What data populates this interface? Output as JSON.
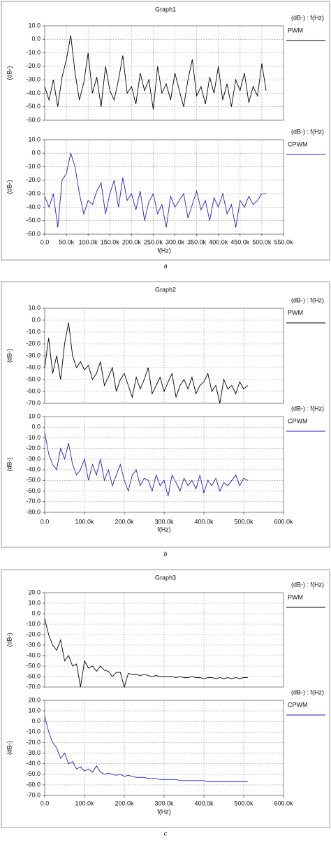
{
  "chart_data": [
    {
      "type": "line",
      "title": "Graph1",
      "ylabel": "(dB-)",
      "legend_title": "(dB-) : f(Hz)",
      "grid": true,
      "xlim": [
        0,
        550000
      ],
      "xticks": [
        0,
        50000,
        100000,
        150000,
        200000,
        250000,
        300000,
        350000,
        400000,
        450000,
        500000,
        550000
      ],
      "ylim": [
        -60,
        10
      ],
      "yticks": [
        {
          "value": 10,
          "label": "10.0"
        },
        {
          "value": 0,
          "label": "0.0"
        },
        {
          "value": -10,
          "label": "-10.0"
        },
        {
          "value": -20,
          "label": "-20.0"
        },
        {
          "value": -30,
          "label": "-30.0"
        },
        {
          "value": -40,
          "label": "-40.0"
        },
        {
          "value": -50,
          "label": "-50.0"
        },
        {
          "value": -60,
          "label": "-60.0"
        }
      ],
      "x": [
        0,
        10000,
        20000,
        30000,
        40000,
        50000,
        60000,
        70000,
        80000,
        90000,
        100000,
        110000,
        120000,
        130000,
        140000,
        150000,
        160000,
        170000,
        180000,
        190000,
        200000,
        210000,
        220000,
        230000,
        240000,
        250000,
        260000,
        270000,
        280000,
        290000,
        300000,
        310000,
        320000,
        330000,
        340000,
        350000,
        360000,
        370000,
        380000,
        390000,
        400000,
        410000,
        420000,
        430000,
        440000,
        450000,
        460000,
        470000,
        480000,
        490000,
        500000,
        510000
      ],
      "series": [
        {
          "name": "PWM",
          "color": "#000000",
          "values": [
            -35,
            -45,
            -30,
            -50,
            -28,
            -15,
            3,
            -25,
            -45,
            -32,
            -10,
            -40,
            -28,
            -50,
            -20,
            -38,
            -45,
            -30,
            -12,
            -40,
            -35,
            -48,
            -25,
            -38,
            -30,
            -52,
            -20,
            -40,
            -33,
            -45,
            -25,
            -38,
            -50,
            -30,
            -15,
            -42,
            -35,
            -48,
            -28,
            -40,
            -20,
            -45,
            -33,
            -50,
            -30,
            -38,
            -25,
            -47,
            -35,
            -42,
            -18,
            -38
          ]
        }
      ]
    },
    {
      "type": "line",
      "caption": "a",
      "xlabel": "f(Hz)",
      "ylabel": "(dB-)",
      "legend_title": "(dB-) : f(Hz)",
      "grid": true,
      "xlim": [
        0,
        550000
      ],
      "xticks": [
        {
          "value": 0,
          "label": "0.0"
        },
        {
          "value": 50000,
          "label": "50.0k"
        },
        {
          "value": 100000,
          "label": "100.0k"
        },
        {
          "value": 150000,
          "label": "150.0k"
        },
        {
          "value": 200000,
          "label": "200.0k"
        },
        {
          "value": 250000,
          "label": "250.0k"
        },
        {
          "value": 300000,
          "label": "300.0k"
        },
        {
          "value": 350000,
          "label": "350.0k"
        },
        {
          "value": 400000,
          "label": "400.0k"
        },
        {
          "value": 450000,
          "label": "450.0k"
        },
        {
          "value": 500000,
          "label": "500.0k"
        },
        {
          "value": 550000,
          "label": "550.0k"
        }
      ],
      "ylim": [
        -60,
        10
      ],
      "yticks": [
        {
          "value": 10,
          "label": "10.0"
        },
        {
          "value": 0,
          "label": "0.0"
        },
        {
          "value": -10,
          "label": "-10.0"
        },
        {
          "value": -20,
          "label": "-20.0"
        },
        {
          "value": -30,
          "label": "-30.0"
        },
        {
          "value": -40,
          "label": "-40.0"
        },
        {
          "value": -50,
          "label": "-50.0"
        },
        {
          "value": -60,
          "label": "-60.0"
        }
      ],
      "x": [
        0,
        10000,
        20000,
        30000,
        40000,
        50000,
        60000,
        70000,
        80000,
        90000,
        100000,
        110000,
        120000,
        130000,
        140000,
        150000,
        160000,
        170000,
        180000,
        190000,
        200000,
        210000,
        220000,
        230000,
        240000,
        250000,
        260000,
        270000,
        280000,
        290000,
        300000,
        310000,
        320000,
        330000,
        340000,
        350000,
        360000,
        370000,
        380000,
        390000,
        400000,
        410000,
        420000,
        430000,
        440000,
        450000,
        460000,
        470000,
        480000,
        490000,
        500000,
        510000
      ],
      "series": [
        {
          "name": "CPWM",
          "color": "#1f1fd0",
          "values": [
            -32,
            -40,
            -30,
            -55,
            -20,
            -15,
            0,
            -10,
            -30,
            -45,
            -35,
            -38,
            -28,
            -22,
            -45,
            -30,
            -20,
            -40,
            -18,
            -35,
            -30,
            -42,
            -28,
            -50,
            -36,
            -30,
            -45,
            -38,
            -55,
            -32,
            -40,
            -35,
            -30,
            -48,
            -38,
            -28,
            -42,
            -35,
            -50,
            -33,
            -40,
            -30,
            -45,
            -38,
            -55,
            -35,
            -40,
            -32,
            -38,
            -35,
            -30,
            -30
          ]
        }
      ]
    },
    {
      "type": "line",
      "title": "Graph2",
      "ylabel": "(dB-)",
      "legend_title": "(dB-) : f(Hz)",
      "grid": true,
      "xlim": [
        0,
        600000
      ],
      "xticks": [
        0,
        100000,
        200000,
        300000,
        400000,
        500000,
        600000
      ],
      "ylim": [
        -70,
        10
      ],
      "yticks": [
        {
          "value": 10,
          "label": "10.0"
        },
        {
          "value": 0,
          "label": "0.0"
        },
        {
          "value": -10,
          "label": "-10.0"
        },
        {
          "value": -20,
          "label": "-20.0"
        },
        {
          "value": -30,
          "label": "-30.0"
        },
        {
          "value": -40,
          "label": "-40.0"
        },
        {
          "value": -50,
          "label": "-50.0"
        },
        {
          "value": -60,
          "label": "-60.0"
        },
        {
          "value": -70,
          "label": "-70.0"
        }
      ],
      "x": [
        0,
        10000,
        20000,
        30000,
        40000,
        50000,
        60000,
        70000,
        80000,
        90000,
        100000,
        110000,
        120000,
        130000,
        140000,
        150000,
        160000,
        170000,
        180000,
        190000,
        200000,
        210000,
        220000,
        230000,
        240000,
        250000,
        260000,
        270000,
        280000,
        290000,
        300000,
        310000,
        320000,
        330000,
        340000,
        350000,
        360000,
        370000,
        380000,
        390000,
        400000,
        410000,
        420000,
        430000,
        440000,
        450000,
        460000,
        470000,
        480000,
        490000,
        500000,
        510000
      ],
      "series": [
        {
          "name": "PWM",
          "color": "#000000",
          "values": [
            -40,
            -15,
            -45,
            -30,
            -50,
            -20,
            -2,
            -30,
            -40,
            -35,
            -42,
            -38,
            -50,
            -45,
            -35,
            -55,
            -48,
            -40,
            -60,
            -50,
            -45,
            -55,
            -65,
            -48,
            -58,
            -50,
            -40,
            -62,
            -55,
            -48,
            -60,
            -52,
            -45,
            -65,
            -55,
            -50,
            -58,
            -48,
            -62,
            -55,
            -52,
            -45,
            -60,
            -55,
            -70,
            -50,
            -58,
            -55,
            -62,
            -52,
            -58,
            -55
          ]
        }
      ]
    },
    {
      "type": "line",
      "caption": "b",
      "xlabel": "f(Hz)",
      "ylabel": "(dB-)",
      "legend_title": "(dB-) : f(Hz)",
      "grid": true,
      "xlim": [
        0,
        600000
      ],
      "xticks": [
        {
          "value": 0,
          "label": "0.0"
        },
        {
          "value": 100000,
          "label": "100.0k"
        },
        {
          "value": 200000,
          "label": "200.0k"
        },
        {
          "value": 300000,
          "label": "300.0k"
        },
        {
          "value": 400000,
          "label": "400.0k"
        },
        {
          "value": 500000,
          "label": "500.0k"
        },
        {
          "value": 600000,
          "label": "600.0k"
        }
      ],
      "ylim": [
        -80,
        10
      ],
      "yticks": [
        {
          "value": 10,
          "label": "10.0"
        },
        {
          "value": 0,
          "label": "0.0"
        },
        {
          "value": -10,
          "label": "-10.0"
        },
        {
          "value": -20,
          "label": "-20.0"
        },
        {
          "value": -30,
          "label": "-30.0"
        },
        {
          "value": -40,
          "label": "-40.0"
        },
        {
          "value": -50,
          "label": "-50.0"
        },
        {
          "value": -60,
          "label": "-60.0"
        },
        {
          "value": -70,
          "label": "-70.0"
        },
        {
          "value": -80,
          "label": "-80.0"
        }
      ],
      "x": [
        0,
        10000,
        20000,
        30000,
        40000,
        50000,
        60000,
        70000,
        80000,
        90000,
        100000,
        110000,
        120000,
        130000,
        140000,
        150000,
        160000,
        170000,
        180000,
        190000,
        200000,
        210000,
        220000,
        230000,
        240000,
        250000,
        260000,
        270000,
        280000,
        290000,
        300000,
        310000,
        320000,
        330000,
        340000,
        350000,
        360000,
        370000,
        380000,
        390000,
        400000,
        410000,
        420000,
        430000,
        440000,
        450000,
        460000,
        470000,
        480000,
        490000,
        500000,
        510000
      ],
      "series": [
        {
          "name": "CPWM",
          "color": "#1f1fd0",
          "values": [
            -5,
            -25,
            -35,
            -40,
            -20,
            -30,
            -15,
            -35,
            -45,
            -40,
            -30,
            -50,
            -35,
            -45,
            -30,
            -50,
            -40,
            -55,
            -45,
            -35,
            -50,
            -60,
            -45,
            -40,
            -55,
            -48,
            -50,
            -60,
            -45,
            -55,
            -50,
            -65,
            -45,
            -52,
            -60,
            -48,
            -55,
            -50,
            -58,
            -45,
            -62,
            -50,
            -55,
            -48,
            -60,
            -52,
            -55,
            -50,
            -45,
            -55,
            -48,
            -50
          ]
        }
      ]
    },
    {
      "type": "line",
      "title": "Graph3",
      "ylabel": "(dB-)",
      "legend_title": "(dB-) : f(Hz)",
      "grid": true,
      "xlim": [
        0,
        600000
      ],
      "xticks": [
        0,
        100000,
        200000,
        300000,
        400000,
        500000,
        600000
      ],
      "ylim": [
        -70,
        20
      ],
      "yticks": [
        {
          "value": 20,
          "label": "20.0"
        },
        {
          "value": 10,
          "label": "10.0"
        },
        {
          "value": 0,
          "label": "0.0"
        },
        {
          "value": -10,
          "label": "-10.0"
        },
        {
          "value": -20,
          "label": "-20.0"
        },
        {
          "value": -30,
          "label": "-30.0"
        },
        {
          "value": -40,
          "label": "-40.0"
        },
        {
          "value": -50,
          "label": "-50.0"
        },
        {
          "value": -60,
          "label": "-60.0"
        },
        {
          "value": -70,
          "label": "-70.0"
        }
      ],
      "x": [
        0,
        10000,
        20000,
        30000,
        40000,
        50000,
        60000,
        70000,
        80000,
        90000,
        100000,
        110000,
        120000,
        130000,
        140000,
        150000,
        160000,
        170000,
        180000,
        190000,
        200000,
        210000,
        220000,
        230000,
        240000,
        250000,
        260000,
        270000,
        280000,
        290000,
        300000,
        310000,
        320000,
        330000,
        340000,
        350000,
        360000,
        370000,
        380000,
        390000,
        400000,
        410000,
        420000,
        430000,
        440000,
        450000,
        460000,
        470000,
        480000,
        490000,
        500000,
        510000
      ],
      "series": [
        {
          "name": "PWM",
          "color": "#000000",
          "values": [
            -5,
            -20,
            -30,
            -35,
            -25,
            -45,
            -40,
            -50,
            -48,
            -70,
            -45,
            -52,
            -50,
            -55,
            -50,
            -54,
            -55,
            -60,
            -56,
            -56,
            -70,
            -57,
            -58,
            -58,
            -59,
            -58,
            -59,
            -60,
            -59,
            -60,
            -60,
            -60,
            -60,
            -61,
            -60,
            -61,
            -61,
            -60,
            -61,
            -61,
            -62,
            -61,
            -61,
            -62,
            -61,
            -62,
            -61,
            -62,
            -61,
            -62,
            -61,
            -61
          ]
        }
      ]
    },
    {
      "type": "line",
      "caption": "c",
      "xlabel": "f(Hz)",
      "ylabel": "(dB-)",
      "legend_title": "(dB-) : f(Hz)",
      "grid": true,
      "xlim": [
        0,
        600000
      ],
      "xticks": [
        {
          "value": 0,
          "label": "0.0"
        },
        {
          "value": 100000,
          "label": "100.0k"
        },
        {
          "value": 200000,
          "label": "200.0k"
        },
        {
          "value": 300000,
          "label": "300.0k"
        },
        {
          "value": 400000,
          "label": "400.0k"
        },
        {
          "value": 500000,
          "label": "500.0k"
        },
        {
          "value": 600000,
          "label": "600.0k"
        }
      ],
      "ylim": [
        -70,
        20
      ],
      "yticks": [
        {
          "value": 20,
          "label": "20.0"
        },
        {
          "value": 10,
          "label": "10.0"
        },
        {
          "value": 0,
          "label": "0.0"
        },
        {
          "value": -10,
          "label": "-10.0"
        },
        {
          "value": -20,
          "label": "-20.0"
        },
        {
          "value": -30,
          "label": "-30.0"
        },
        {
          "value": -40,
          "label": "-40.0"
        },
        {
          "value": -50,
          "label": "-50.0"
        },
        {
          "value": -60,
          "label": "-60.0"
        },
        {
          "value": -70,
          "label": "-70.0"
        }
      ],
      "x": [
        0,
        10000,
        20000,
        30000,
        40000,
        50000,
        60000,
        70000,
        80000,
        90000,
        100000,
        110000,
        120000,
        130000,
        140000,
        150000,
        160000,
        170000,
        180000,
        190000,
        200000,
        210000,
        220000,
        230000,
        240000,
        250000,
        260000,
        270000,
        280000,
        290000,
        300000,
        310000,
        320000,
        330000,
        340000,
        350000,
        360000,
        370000,
        380000,
        390000,
        400000,
        410000,
        420000,
        430000,
        440000,
        450000,
        460000,
        470000,
        480000,
        490000,
        500000,
        510000
      ],
      "series": [
        {
          "name": "CPWM",
          "color": "#1f1fd0",
          "values": [
            5,
            -10,
            -20,
            -25,
            -35,
            -30,
            -40,
            -38,
            -45,
            -43,
            -47,
            -45,
            -48,
            -42,
            -48,
            -50,
            -49,
            -50,
            -51,
            -50,
            -52,
            -51,
            -52,
            -53,
            -53,
            -53,
            -54,
            -54,
            -54,
            -55,
            -55,
            -55,
            -55,
            -55,
            -56,
            -56,
            -56,
            -56,
            -56,
            -56,
            -56,
            -57,
            -57,
            -57,
            -57,
            -57,
            -57,
            -57,
            -57,
            -57,
            -57,
            -57
          ]
        }
      ]
    }
  ]
}
